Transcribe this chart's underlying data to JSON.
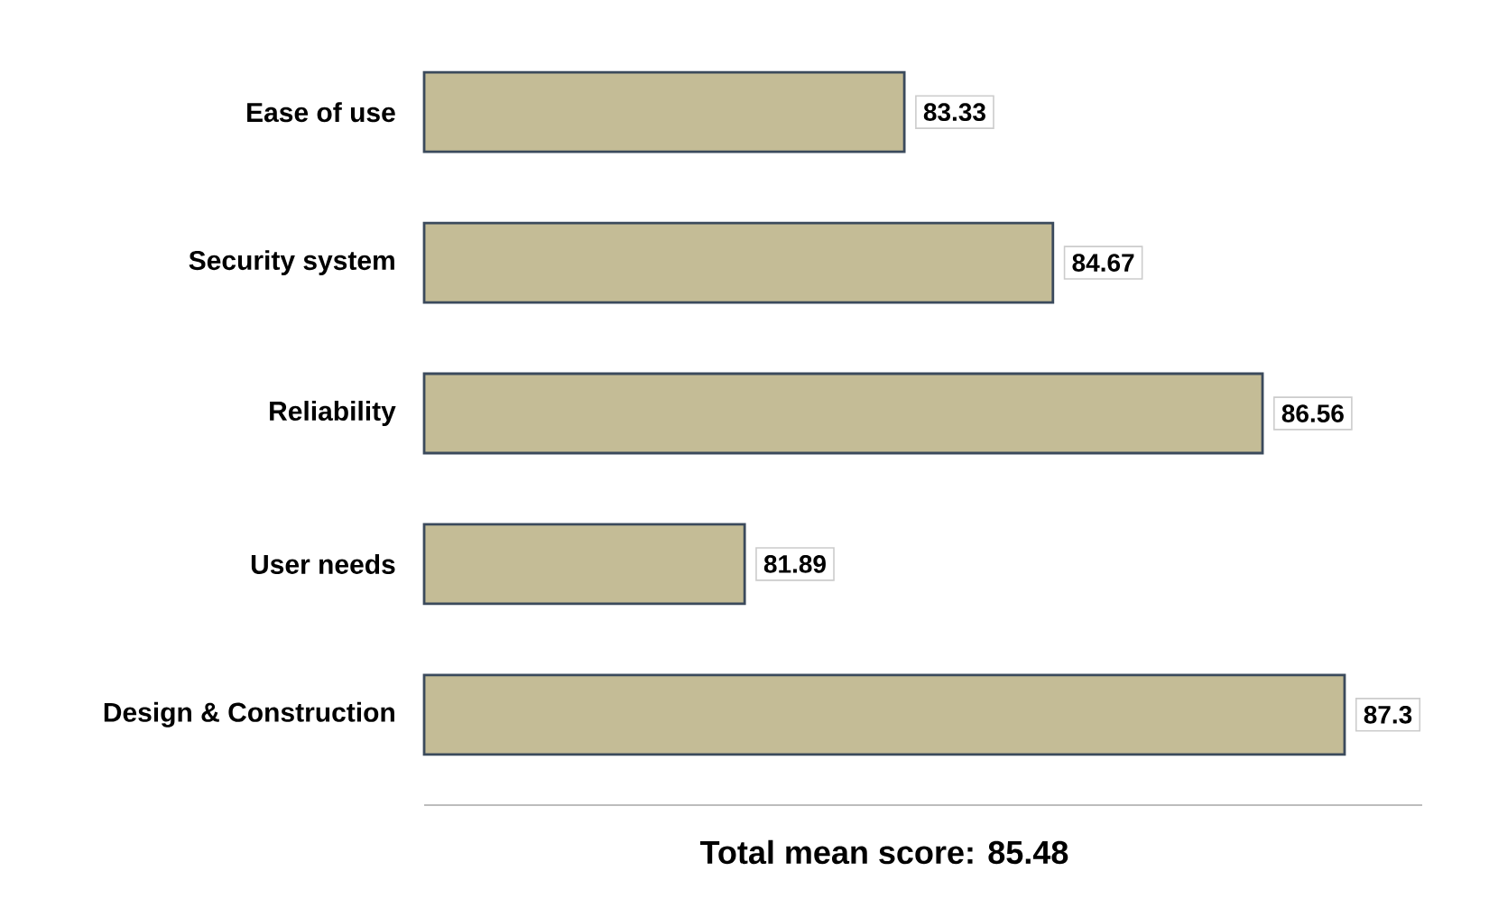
{
  "chart_data": {
    "type": "bar",
    "orientation": "horizontal",
    "categories": [
      "Ease of use",
      "Security system",
      "Reliability",
      "User needs",
      "Design & Construction"
    ],
    "values": [
      83.33,
      84.67,
      86.56,
      81.89,
      87.3
    ],
    "value_labels": [
      "83.33",
      "84.67",
      "86.56",
      "81.89",
      "87.3"
    ],
    "color": "#c4bc96",
    "xlim": [
      79,
      88
    ],
    "tick_labels": "y",
    "annotations": [
      "Total mean score: 85.48"
    ]
  }
}
